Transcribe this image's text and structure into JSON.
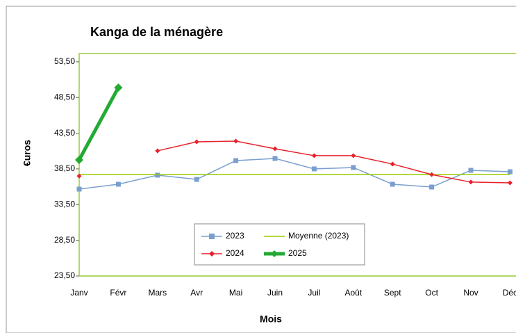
{
  "chart_data": {
    "type": "line",
    "title": "Kanga de la ménagère",
    "x_label": "Mois",
    "y_label": "€uros",
    "categories": [
      "Janv",
      "Févr",
      "Mars",
      "Avr",
      "Mai",
      "Juin",
      "Juil",
      "Août",
      "Sept",
      "Oct",
      "Nov",
      "Déc"
    ],
    "ylim": [
      23.5,
      54.5
    ],
    "yticks": [
      {
        "value": 23.5,
        "label": "23,50"
      },
      {
        "value": 28.5,
        "label": "28,50"
      },
      {
        "value": 33.5,
        "label": "33,50"
      },
      {
        "value": 38.5,
        "label": "38,50"
      },
      {
        "value": 43.5,
        "label": "43,50"
      },
      {
        "value": 48.5,
        "label": "48,50"
      },
      {
        "value": 53.5,
        "label": "53,50"
      }
    ],
    "series": [
      {
        "name": "2023",
        "color": "#7a9fcf",
        "marker": "square",
        "values": [
          35.67,
          36.35,
          37.62,
          37.03,
          39.66,
          39.96,
          38.5,
          38.69,
          36.35,
          35.96,
          38.3,
          38.1
        ]
      },
      {
        "name": "Moyenne (2023)",
        "color": "#99cc00",
        "marker": "none",
        "values": [
          37.7,
          37.7,
          37.7,
          37.7,
          37.7,
          37.7,
          37.7,
          37.7,
          37.7,
          37.7,
          37.7,
          37.7
        ]
      },
      {
        "name": "2024",
        "color": "#e8202a",
        "marker": "diamond",
        "values": [
          37.5,
          null,
          41.03,
          42.29,
          42.39,
          41.32,
          40.35,
          40.35,
          39.18,
          37.7,
          36.65,
          36.55
        ]
      },
      {
        "name": "2025",
        "color": "#22aa33",
        "marker": "diamond",
        "width": 5,
        "values": [
          39.76,
          49.89,
          null,
          null,
          null,
          null,
          null,
          null,
          null,
          null,
          null,
          null
        ]
      }
    ]
  }
}
